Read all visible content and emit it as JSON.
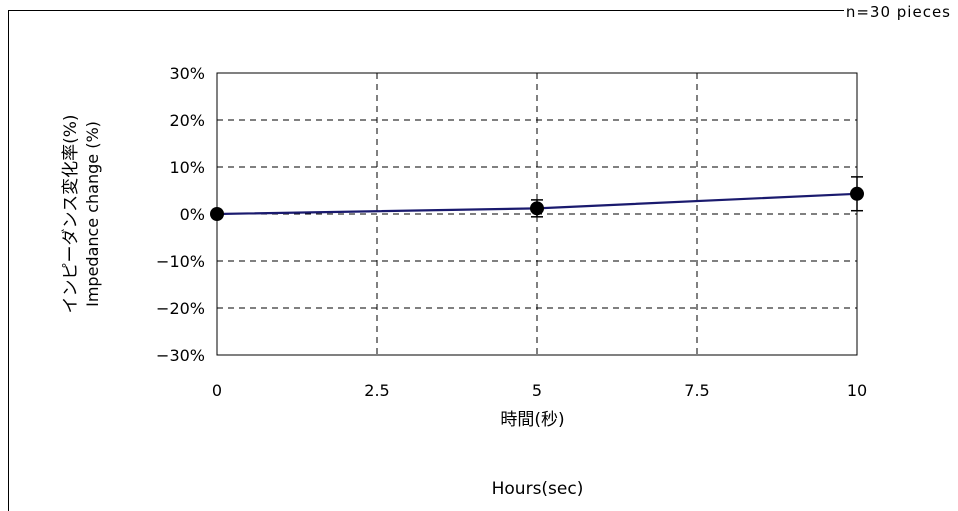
{
  "corner_note": "n=30  pieces",
  "chart_data": {
    "type": "line",
    "x": [
      0,
      5,
      10
    ],
    "series": [
      {
        "values": [
          0.0,
          1.2,
          4.3
        ],
        "error": [
          0.3,
          1.8,
          3.6
        ],
        "color": "#1a1a6e",
        "marker_color": "#000000"
      }
    ],
    "xlabel_jp": "時間(秒)",
    "xlabel_en": "Hours(sec)",
    "ylabel_jp": "インピーダンス変化率(%)",
    "ylabel_en": "Impedance change (%)",
    "xlim": [
      0,
      10
    ],
    "ylim": [
      -30,
      30
    ],
    "xticks": [
      "0",
      "2.5",
      "5",
      "7.5",
      "10"
    ],
    "yticks": [
      "30%",
      "20%",
      "10%",
      "0%",
      "−10%",
      "−20%",
      "−30%"
    ],
    "grid": true,
    "grid_style": "dashed"
  }
}
